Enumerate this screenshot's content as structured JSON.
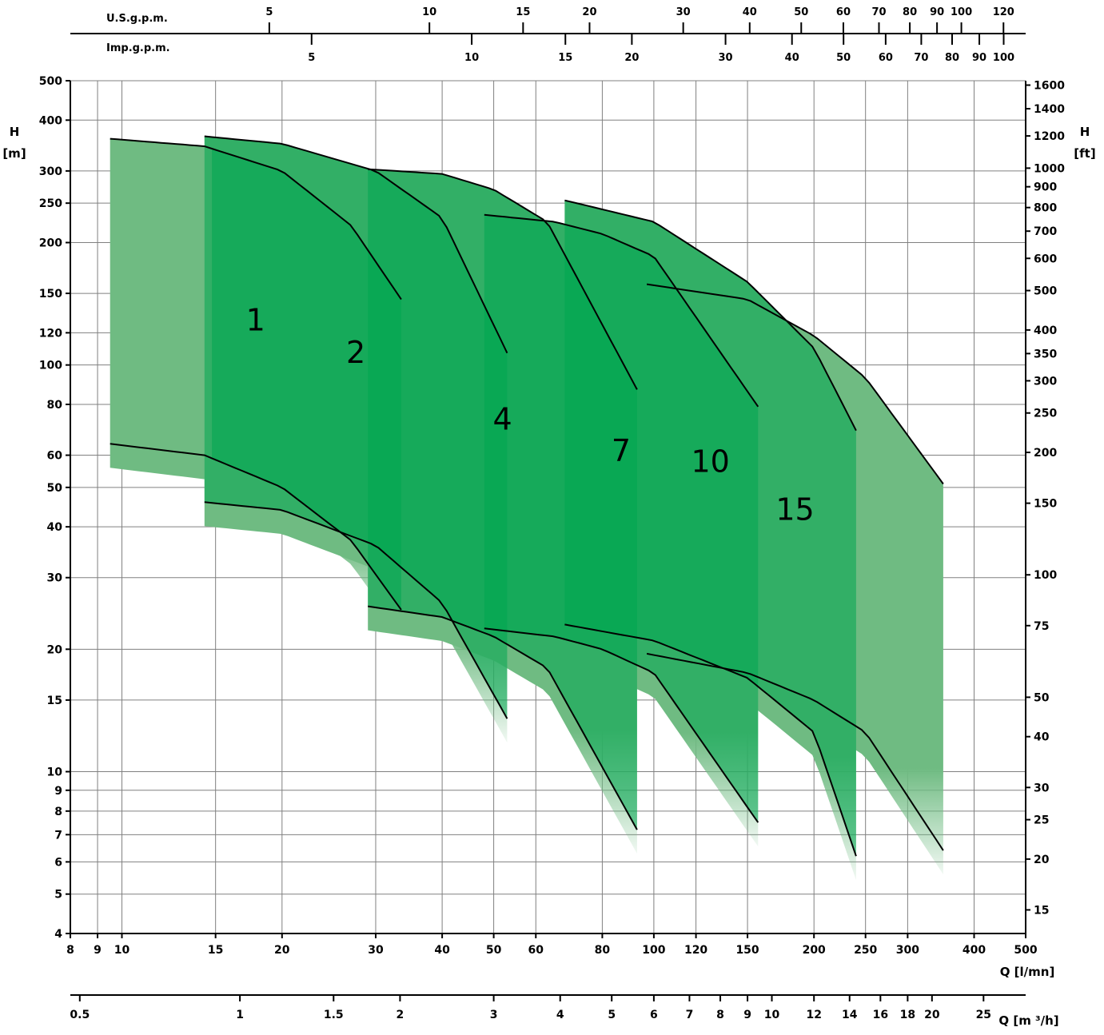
{
  "chart_data": {
    "type": "area",
    "scale": {
      "x": "log",
      "y": "log"
    },
    "grid": true,
    "x_axis": {
      "label": "Q [l/mn]",
      "lim": [
        8,
        500
      ],
      "ticks": [
        "8",
        "9",
        "10",
        "15",
        "20",
        "30",
        "40",
        "50",
        "60",
        "80",
        "100",
        "120",
        "150",
        "200",
        "250",
        "300",
        "400",
        "500"
      ]
    },
    "x_axis_m3h": {
      "label": "Q [m ³/h]",
      "ticks": [
        "0.5",
        "1",
        "1.5",
        "2",
        "3",
        "4",
        "5",
        "6",
        "7",
        "8",
        "9",
        "10",
        "12",
        "14",
        "16",
        "18",
        "20",
        "25"
      ]
    },
    "x_axis_usgpm": {
      "label": "U.S.g.p.m.",
      "ticks": [
        "5",
        "10",
        "15",
        "20",
        "30",
        "40",
        "50",
        "60",
        "70",
        "80",
        "90",
        "100",
        "120"
      ]
    },
    "x_axis_impgpm": {
      "label": "Imp.g.p.m.",
      "ticks": [
        "5",
        "10",
        "15",
        "20",
        "30",
        "40",
        "50",
        "60",
        "70",
        "80",
        "90",
        "100"
      ]
    },
    "y_axis": {
      "label_line1": "H",
      "label_line2": "[m]",
      "lim": [
        4,
        500
      ],
      "ticks": [
        "4",
        "5",
        "6",
        "7",
        "8",
        "9",
        "10",
        "15",
        "20",
        "30",
        "40",
        "50",
        "60",
        "80",
        "100",
        "120",
        "150",
        "200",
        "250",
        "300",
        "400",
        "500"
      ]
    },
    "y_axis_ft": {
      "label_line1": "H",
      "label_line2": "[ft]",
      "ticks": [
        "15",
        "20",
        "25",
        "30",
        "40",
        "50",
        "75",
        "100",
        "150",
        "200",
        "250",
        "300",
        "350",
        "400",
        "500",
        "600",
        "700",
        "800",
        "900",
        "1000",
        "1200",
        "1400",
        "1600"
      ]
    },
    "series": [
      {
        "name": "1",
        "upper": {
          "x": [
            9.5,
            14.3,
            20,
            27,
            33.5
          ],
          "y": [
            360,
            345,
            300,
            220,
            145
          ]
        },
        "lower": {
          "x": [
            9.5,
            14.3,
            20,
            27,
            33.5
          ],
          "y": [
            64,
            60,
            50,
            37,
            25
          ]
        }
      },
      {
        "name": "2",
        "upper": {
          "x": [
            14.3,
            20,
            30,
            40,
            53
          ],
          "y": [
            365,
            350,
            300,
            230,
            107
          ]
        },
        "lower": {
          "x": [
            14.3,
            20,
            30,
            40,
            53
          ],
          "y": [
            46,
            44,
            36,
            26,
            13.5
          ]
        }
      },
      {
        "name": "4",
        "upper": {
          "x": [
            29,
            40,
            50,
            63,
            93
          ],
          "y": [
            303,
            295,
            270,
            225,
            87
          ]
        },
        "lower": {
          "x": [
            29,
            40,
            50,
            63,
            93
          ],
          "y": [
            25.5,
            24,
            21.5,
            18,
            7.2
          ]
        }
      },
      {
        "name": "7",
        "upper": {
          "x": [
            48,
            65,
            80,
            100,
            157
          ],
          "y": [
            234,
            225,
            210,
            185,
            79
          ]
        },
        "lower": {
          "x": [
            48,
            65,
            80,
            100,
            157
          ],
          "y": [
            22.5,
            21.5,
            20,
            17.5,
            7.5
          ]
        }
      },
      {
        "name": "10",
        "upper": {
          "x": [
            68,
            100,
            150,
            200,
            240
          ],
          "y": [
            254,
            225,
            160,
            110,
            69
          ]
        },
        "lower": {
          "x": [
            68,
            100,
            150,
            200,
            240
          ],
          "y": [
            23,
            21,
            17,
            12.5,
            6.2
          ]
        }
      },
      {
        "name": "15",
        "upper": {
          "x": [
            97,
            150,
            200,
            250,
            350
          ],
          "y": [
            158,
            145,
            118,
            93,
            51
          ]
        },
        "lower": {
          "x": [
            97,
            150,
            200,
            250,
            350
          ],
          "y": [
            19.5,
            17.5,
            15,
            12.5,
            6.4
          ]
        }
      }
    ],
    "colors": {
      "light": "#6fbb82",
      "dark": "#00a651",
      "curve": "#000000",
      "grid": "#808080"
    }
  }
}
